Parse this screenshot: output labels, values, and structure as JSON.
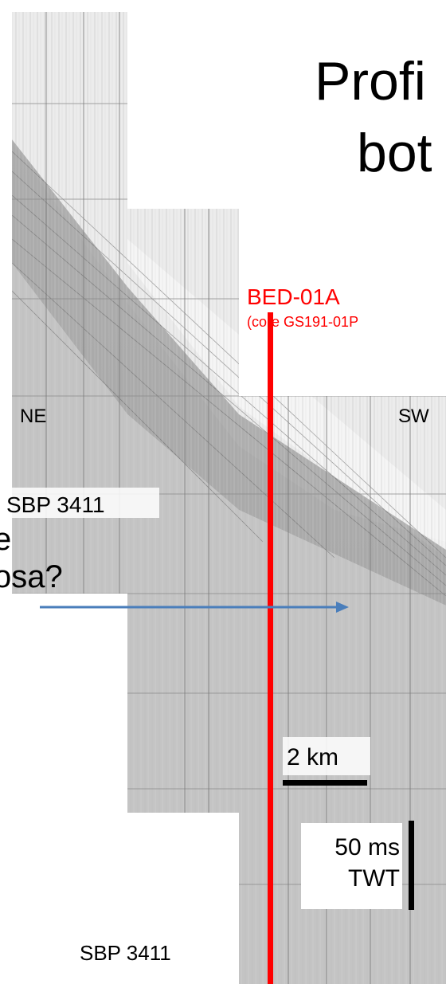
{
  "slide": {
    "title_lines": [
      "Profi",
      "bot"
    ],
    "core_label": "BED-01A",
    "core_sublabel": "(core GS191-01P",
    "direction_left": "NE",
    "direction_right": "SW",
    "profile_label_top": "SBP 3411",
    "side_text": [
      "e",
      "osa?"
    ],
    "scale_horizontal": "2 km",
    "scale_vertical": [
      "50 ms",
      "TWT"
    ],
    "profile_label_bottom": "SBP 3411"
  }
}
